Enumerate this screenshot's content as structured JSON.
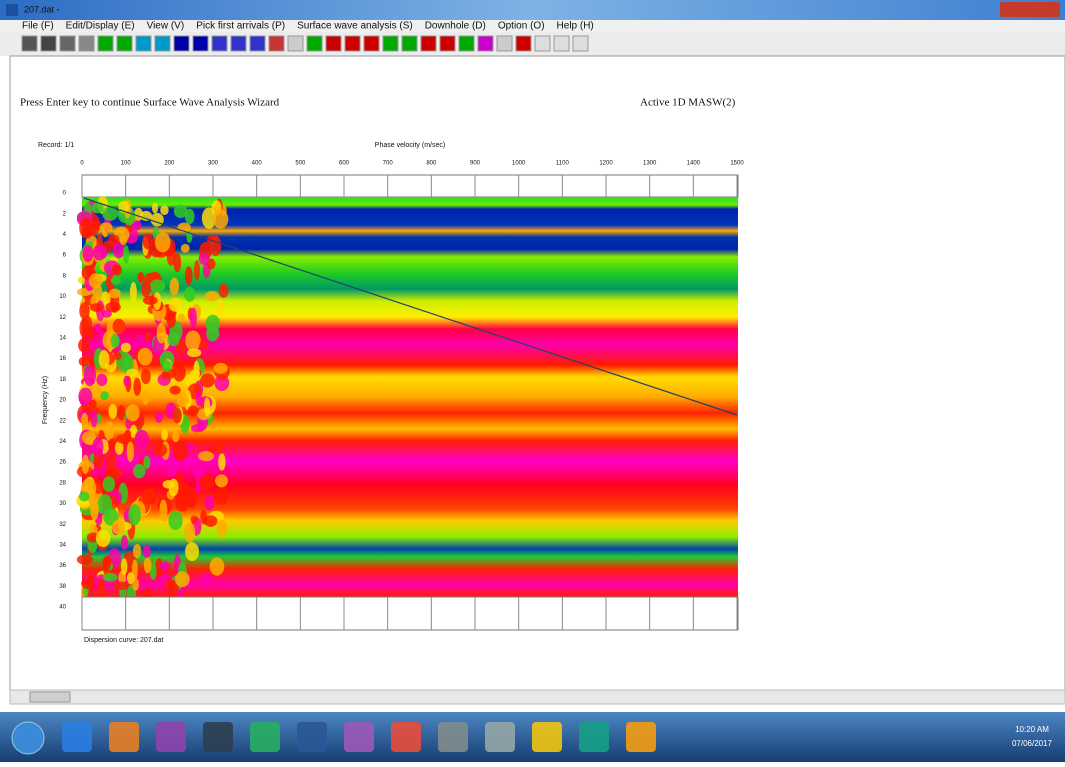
{
  "window": {
    "title": "207.dat -"
  },
  "menu": [
    "File (F)",
    "Edit/Display (E)",
    "View (V)",
    "Pick first arrivals (P)",
    "Surface wave analysis (S)",
    "Downhole (D)",
    "Option (O)",
    "Help (H)"
  ],
  "status": {
    "prompt": "Press Enter key to continue Surface Wave Analysis Wizard",
    "mode": "Active 1D MASW(2)"
  },
  "plot": {
    "record": "Record: 1/1",
    "x_label": "Phase velocity (m/sec)",
    "x_ticks": [
      0,
      100,
      200,
      300,
      400,
      500,
      600,
      700,
      800,
      900,
      1000,
      1100,
      1200,
      1300,
      1400,
      1500
    ],
    "y_label": "Frequency (Hz)",
    "y_ticks": [
      0,
      2,
      4,
      6,
      8,
      10,
      12,
      14,
      16,
      18,
      20,
      22,
      24,
      26,
      28,
      30,
      32,
      34,
      36,
      38,
      40
    ],
    "footer": "Dispersion curve: 207.dat"
  },
  "taskbar": {
    "time": "10:20 AM",
    "date": "07/06/2017"
  }
}
